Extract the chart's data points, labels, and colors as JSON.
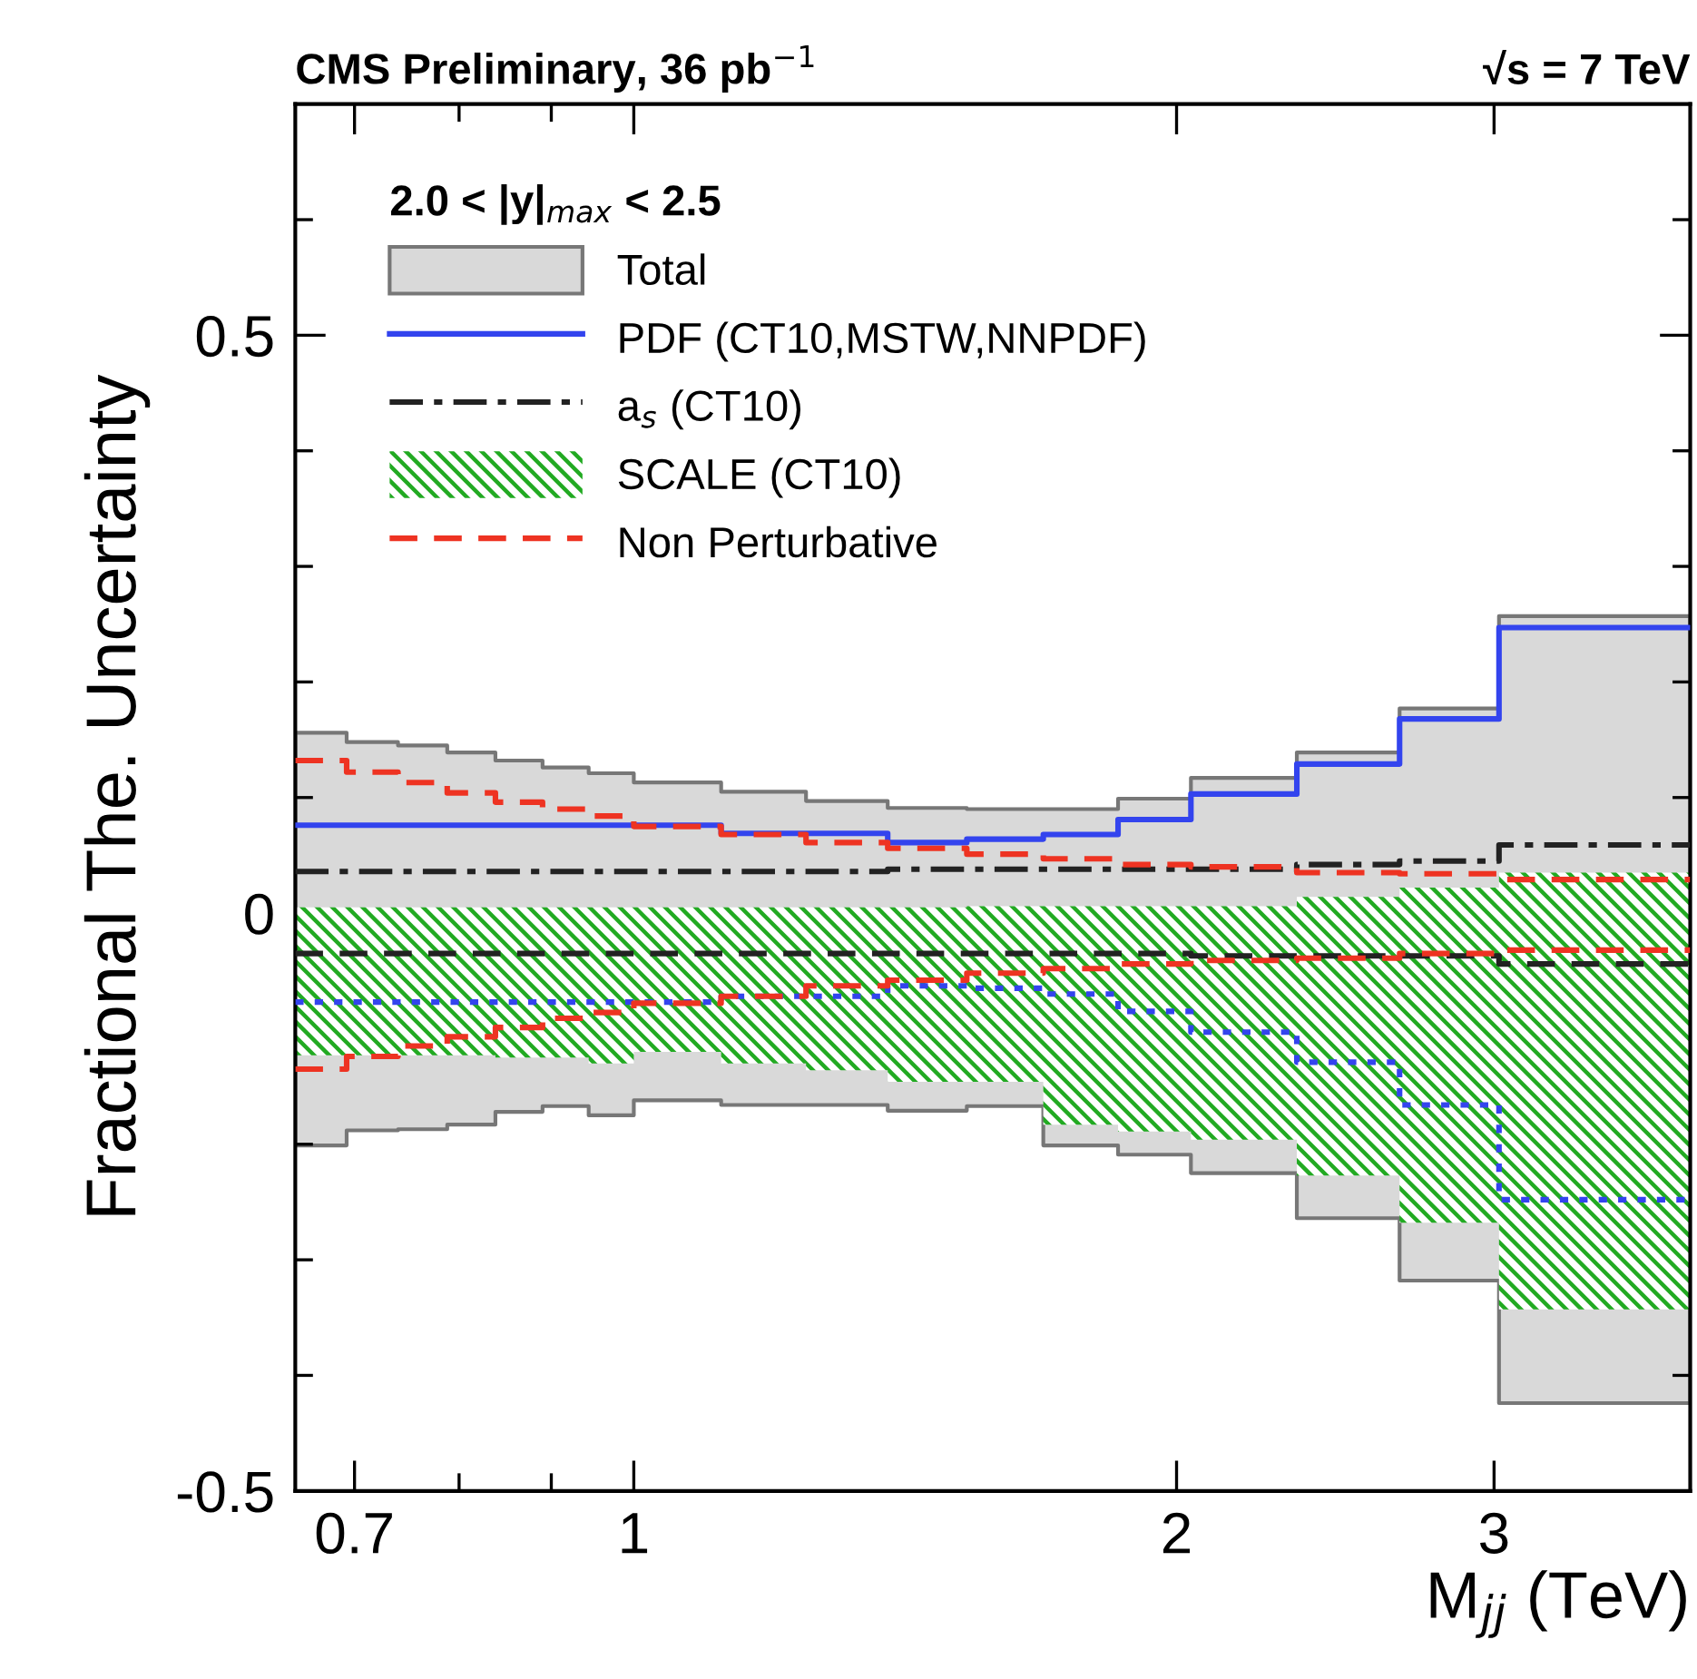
{
  "chart_data": {
    "type": "step",
    "title": "CMS Preliminary, 36 pb$^{−1}$",
    "subtitle": "√s = 7 TeV",
    "xlabel": "M$_{jj}$ (TeV)",
    "ylabel": "Fractional The. Uncertainty",
    "legend_title": "2.0 < |y|$_{max}$ < 2.5",
    "x": [
      0.649,
      0.693,
      0.74,
      0.788,
      0.838,
      0.89,
      0.944,
      1.0,
      1.118,
      1.246,
      1.383,
      1.53,
      1.687,
      1.856,
      2.037,
      2.332,
      2.659,
      3.019,
      3.854
    ],
    "series": [
      {
        "name": "Total",
        "color": "#d9d9d9",
        "values": [
          null,
          null,
          null,
          null,
          null,
          null,
          null,
          null,
          null,
          null,
          null,
          null,
          null,
          null,
          null,
          null,
          null,
          null,
          null
        ],
        "upper": [
          0.156,
          0.148,
          0.145,
          0.139,
          0.132,
          0.126,
          0.121,
          0.113,
          0.105,
          0.097,
          0.091,
          0.09,
          0.09,
          0.099,
          0.117,
          0.139,
          0.177,
          0.257,
          0.257
        ],
        "lower": [
          -0.201,
          -0.188,
          -0.187,
          -0.183,
          -0.172,
          -0.167,
          -0.175,
          -0.162,
          -0.166,
          -0.166,
          -0.171,
          -0.167,
          -0.201,
          -0.209,
          -0.225,
          -0.264,
          -0.318,
          -0.424,
          -0.424
        ]
      },
      {
        "name": "PDF (CT10,MSTW,NNPDF)",
        "color": "#3344ee",
        "line_style": "solid",
        "values": [
          0.076,
          0.076,
          0.076,
          0.076,
          0.076,
          0.076,
          0.076,
          0.076,
          0.069,
          0.069,
          0.061,
          0.064,
          0.068,
          0.081,
          0.103,
          0.129,
          0.168,
          0.247,
          0.247
        ]
      },
      {
        "color": "#3344ee",
        "line_style": "dotted",
        "values": [
          -0.077,
          -0.077,
          -0.077,
          -0.077,
          -0.077,
          -0.077,
          -0.077,
          -0.077,
          -0.072,
          -0.072,
          -0.063,
          -0.065,
          -0.07,
          -0.085,
          -0.103,
          -0.129,
          -0.166,
          -0.248,
          -0.248
        ]
      },
      {
        "name": "a$_{s}$ (CT10)",
        "color": "#222222",
        "line_style": "dashdot",
        "values": [
          0.036,
          0.036,
          0.036,
          0.036,
          0.036,
          0.036,
          0.036,
          0.036,
          0.036,
          0.036,
          0.038,
          0.038,
          0.038,
          0.038,
          0.038,
          0.042,
          0.045,
          0.059,
          0.059
        ]
      },
      {
        "color": "#222222",
        "line_style": "dashed",
        "values": [
          -0.035,
          -0.035,
          -0.035,
          -0.035,
          -0.035,
          -0.035,
          -0.035,
          -0.035,
          -0.035,
          -0.035,
          -0.035,
          -0.035,
          -0.035,
          -0.035,
          -0.037,
          -0.037,
          -0.037,
          -0.044,
          -0.044
        ]
      },
      {
        "name": "SCALE (CT10)",
        "color": "#22aa22",
        "values": [
          null,
          null,
          null,
          null,
          null,
          null,
          null,
          null,
          null,
          null,
          null,
          null,
          null,
          null,
          null,
          null,
          null,
          null,
          null
        ],
        "upper": [
          0.005,
          0.005,
          0.005,
          0.005,
          0.005,
          0.005,
          0.005,
          0.005,
          0.005,
          0.005,
          0.005,
          0.006,
          0.006,
          0.006,
          0.006,
          0.014,
          0.022,
          0.035,
          0.035
        ],
        "lower": [
          -0.123,
          -0.123,
          -0.123,
          -0.123,
          -0.125,
          -0.125,
          -0.13,
          -0.12,
          -0.13,
          -0.136,
          -0.146,
          -0.146,
          -0.183,
          -0.189,
          -0.196,
          -0.227,
          -0.268,
          -0.343,
          -0.343
        ]
      },
      {
        "name": "Non Perturbative",
        "color": "#ee3322",
        "line_style": "dashed",
        "values": [
          0.132,
          0.122,
          0.113,
          0.104,
          0.096,
          0.09,
          0.084,
          0.075,
          0.068,
          0.061,
          0.056,
          0.051,
          0.047,
          0.042,
          0.04,
          0.035,
          0.034,
          0.029,
          0.029
        ]
      },
      {
        "color": "#ee3322",
        "line_style": "dashed",
        "values": [
          -0.135,
          -0.124,
          -0.115,
          -0.107,
          -0.099,
          -0.091,
          -0.086,
          -0.078,
          -0.072,
          -0.063,
          -0.058,
          -0.052,
          -0.048,
          -0.044,
          -0.041,
          -0.039,
          -0.035,
          -0.032,
          -0.032
        ]
      }
    ],
    "log": "x",
    "xlim": [
      0.649,
      3.854
    ],
    "xticks": [
      0.7,
      {
        "value": 0.8,
        "label": null
      },
      {
        "value": 0.9,
        "label": null
      },
      1,
      2,
      3
    ],
    "ylim": [
      -0.5,
      0.7
    ],
    "yticks": [
      -0.5,
      {
        "value": -0.4,
        "label": null
      },
      {
        "value": -0.3,
        "label": null
      },
      {
        "value": -0.2,
        "label": null
      },
      {
        "value": -0.1,
        "label": null
      },
      0,
      {
        "value": 0.1,
        "label": null
      },
      {
        "value": 0.2,
        "label": null
      },
      {
        "value": 0.3,
        "label": null
      },
      {
        "value": 0.4,
        "label": null
      },
      0.5,
      {
        "value": 0.6,
        "label": null
      }
    ],
    "grid": false,
    "legend": "top left"
  }
}
